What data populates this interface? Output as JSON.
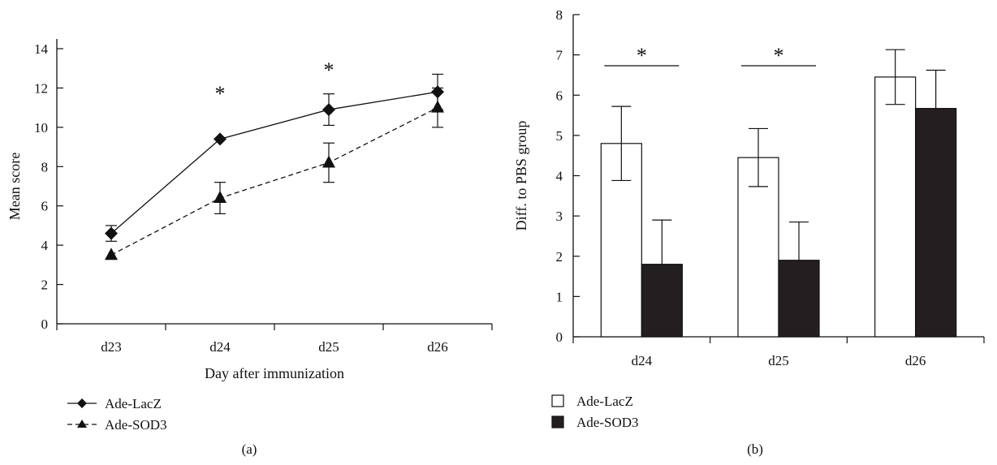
{
  "chart_data": [
    {
      "type": "line",
      "panel_label": "(a)",
      "xlabel": "Day after immunization",
      "ylabel": "Mean score",
      "categories": [
        "d23",
        "d24",
        "d25",
        "d26"
      ],
      "ylim": [
        0,
        14
      ],
      "yticks": [
        0,
        2,
        4,
        6,
        8,
        10,
        12,
        14
      ],
      "grid": false,
      "legend_position": "bottom-left",
      "series": [
        {
          "name": "Ade-LacZ",
          "values": [
            4.6,
            9.4,
            10.9,
            11.8
          ],
          "errors": [
            0.4,
            0.0,
            0.8,
            0.9
          ],
          "marker": "diamond",
          "line_style": "solid"
        },
        {
          "name": "Ade-SOD3",
          "values": [
            3.5,
            6.4,
            8.2,
            11.0
          ],
          "errors": [
            0.0,
            0.8,
            1.0,
            1.0
          ],
          "marker": "triangle",
          "line_style": "dashed"
        }
      ],
      "significance": [
        {
          "category": "d24",
          "label": "*"
        },
        {
          "category": "d25",
          "label": "*"
        }
      ]
    },
    {
      "type": "bar",
      "panel_label": "(b)",
      "xlabel": "",
      "ylabel": "Diff. to PBS group",
      "categories": [
        "d24",
        "d25",
        "d26"
      ],
      "ylim": [
        0,
        8
      ],
      "yticks": [
        0,
        1,
        2,
        3,
        4,
        5,
        6,
        7,
        8
      ],
      "grid": false,
      "legend_position": "bottom-left",
      "series": [
        {
          "name": "Ade-LacZ",
          "values": [
            4.8,
            4.45,
            6.45
          ],
          "errors": [
            0.92,
            0.72,
            0.68
          ],
          "color": "#ffffff"
        },
        {
          "name": "Ade-SOD3",
          "values": [
            1.8,
            1.9,
            5.67
          ],
          "errors": [
            1.1,
            0.95,
            0.95
          ],
          "color": "#231f20"
        }
      ],
      "significance": [
        {
          "category": "d24",
          "label": "*"
        },
        {
          "category": "d25",
          "label": "*"
        }
      ]
    }
  ]
}
